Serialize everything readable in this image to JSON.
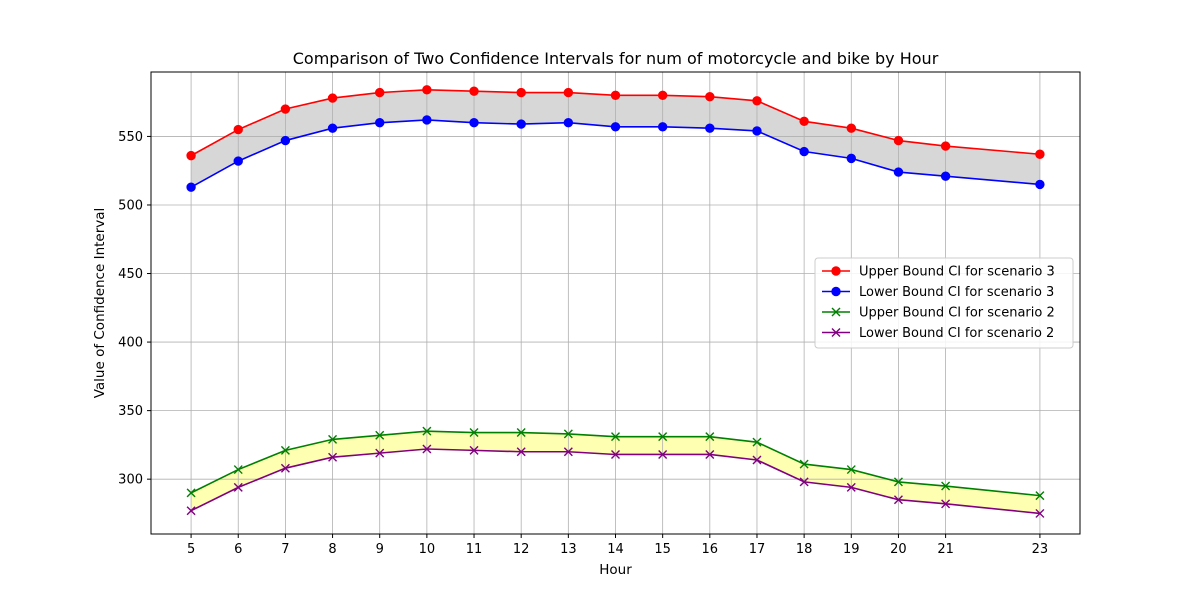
{
  "chart_data": {
    "type": "line",
    "title": "Comparison of Two Confidence Intervals for num of motorcycle and bike by Hour",
    "xlabel": "Hour",
    "ylabel": "Value of Confidence Interval",
    "x": [
      5,
      6,
      7,
      8,
      9,
      10,
      11,
      12,
      13,
      14,
      15,
      16,
      17,
      18,
      19,
      20,
      21,
      23
    ],
    "xlim": [
      4.15,
      23.85
    ],
    "ylim": [
      260,
      597
    ],
    "yticks": [
      300,
      350,
      400,
      450,
      500,
      550
    ],
    "grid": true,
    "legend_position": "center-right",
    "series": [
      {
        "name": "Upper Bound CI for scenario 3",
        "color": "#ff0000",
        "marker": "circle",
        "values": [
          536,
          555,
          570,
          578,
          582,
          584,
          583,
          582,
          582,
          580,
          580,
          579,
          576,
          561,
          556,
          547,
          543,
          537
        ]
      },
      {
        "name": "Lower Bound CI for scenario 3",
        "color": "#0000ff",
        "marker": "circle",
        "values": [
          513,
          532,
          547,
          556,
          560,
          562,
          560,
          559,
          560,
          557,
          557,
          556,
          554,
          539,
          534,
          524,
          521,
          515
        ]
      },
      {
        "name": "Upper Bound CI for scenario 2",
        "color": "#008000",
        "marker": "x",
        "values": [
          290,
          307,
          321,
          329,
          332,
          335,
          334,
          334,
          333,
          331,
          331,
          331,
          327,
          311,
          307,
          298,
          295,
          288
        ]
      },
      {
        "name": "Lower Bound CI for scenario 2",
        "color": "#800080",
        "marker": "x",
        "values": [
          277,
          294,
          308,
          316,
          319,
          322,
          321,
          320,
          320,
          318,
          318,
          318,
          314,
          298,
          294,
          285,
          282,
          275
        ]
      }
    ],
    "fills": [
      {
        "between": [
          0,
          1
        ],
        "color": "#d3d3d3"
      },
      {
        "between": [
          2,
          3
        ],
        "color": "#ffffaa"
      }
    ]
  }
}
